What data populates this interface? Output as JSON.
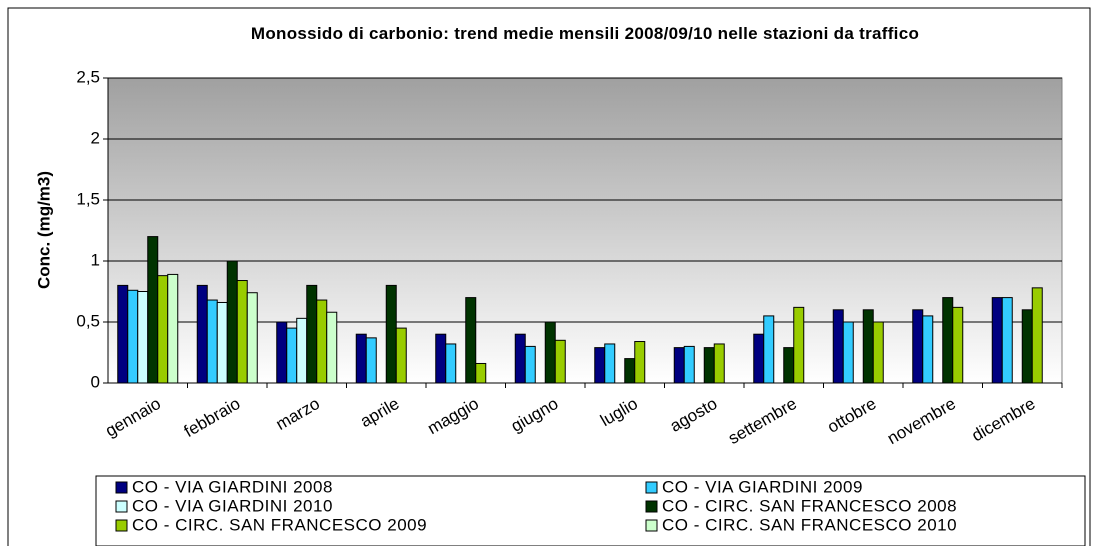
{
  "chart_data": {
    "type": "bar",
    "title": "Monossido di carbonio: trend medie mensili 2008/09/10 nelle stazioni da traffico",
    "y_label": "Conc. (mg/m3)",
    "categories": [
      "gennaio",
      "febbraio",
      "marzo",
      "aprile",
      "maggio",
      "giugno",
      "luglio",
      "agosto",
      "settembre",
      "ottobre",
      "novembre",
      "dicembre"
    ],
    "series": [
      {
        "name": "CO - VIA GIARDINI 2008",
        "color": "#000080",
        "values": [
          0.8,
          0.8,
          0.5,
          0.4,
          0.4,
          0.4,
          0.29,
          0.29,
          0.4,
          0.6,
          0.6,
          0.7
        ]
      },
      {
        "name": "CO - VIA GIARDINI 2009",
        "color": "#33ccff",
        "values": [
          0.76,
          0.68,
          0.45,
          0.37,
          0.32,
          0.3,
          0.32,
          0.3,
          0.55,
          0.5,
          0.55,
          0.7
        ]
      },
      {
        "name": "CO - VIA GIARDINI 2010",
        "color": "#ccffff",
        "values": [
          0.75,
          0.66,
          0.53,
          null,
          null,
          null,
          null,
          null,
          null,
          null,
          null,
          null
        ]
      },
      {
        "name": "CO - CIRC. SAN FRANCESCO 2008",
        "color": "#003300",
        "values": [
          1.2,
          1.0,
          0.8,
          0.8,
          0.7,
          0.5,
          0.2,
          0.29,
          0.29,
          0.6,
          0.7,
          0.6
        ]
      },
      {
        "name": "CO - CIRC. SAN FRANCESCO 2009",
        "color": "#99cc00",
        "values": [
          0.88,
          0.84,
          0.68,
          0.45,
          0.16,
          0.35,
          0.34,
          0.32,
          0.62,
          0.5,
          0.62,
          0.78
        ]
      },
      {
        "name": "CO - CIRC. SAN FRANCESCO 2010",
        "color": "#ccffcc",
        "values": [
          0.89,
          0.74,
          0.58,
          null,
          null,
          null,
          null,
          null,
          null,
          null,
          null,
          null
        ]
      }
    ],
    "ylim": [
      0,
      2.5
    ],
    "yticks": [
      0,
      {
        "value": 0.5,
        "label": "0,5"
      },
      1,
      {
        "value": 1.5,
        "label": "1,5"
      },
      2,
      {
        "value": 2.5,
        "label": "2,5"
      }
    ],
    "grid": true,
    "legend": "bottom"
  }
}
